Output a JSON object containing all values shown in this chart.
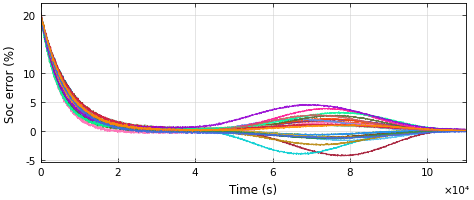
{
  "title": "",
  "xlabel": "Time (s)",
  "ylabel": "Soc error (%)",
  "xlim": [
    0,
    110000
  ],
  "ylim": [
    -5.5,
    22
  ],
  "yticks": [
    -5,
    0,
    5,
    10,
    20
  ],
  "xticks": [
    0,
    20000,
    40000,
    60000,
    80000,
    100000
  ],
  "xticklabels": [
    "0",
    "2",
    "4",
    "6",
    "8",
    "10"
  ],
  "x_scale_label": "×10⁴",
  "colors": [
    "#0072BD",
    "#D95319",
    "#EDB120",
    "#7E2F8E",
    "#77AC30",
    "#4DBEEE",
    "#A2142F",
    "#FF69B4",
    "#00CED1",
    "#8B4513",
    "#FF4500",
    "#6495ED",
    "#556B2F",
    "#FF1493",
    "#1E90FF",
    "#DAA520",
    "#8FBC8F",
    "#DC143C",
    "#00FA9A",
    "#9400D3",
    "#B8860B",
    "#2E8B57",
    "#CD5C5C",
    "#4169E1",
    "#FF8C00"
  ],
  "n_lines": 25,
  "background_color": "#ffffff",
  "linewidth": 0.6
}
